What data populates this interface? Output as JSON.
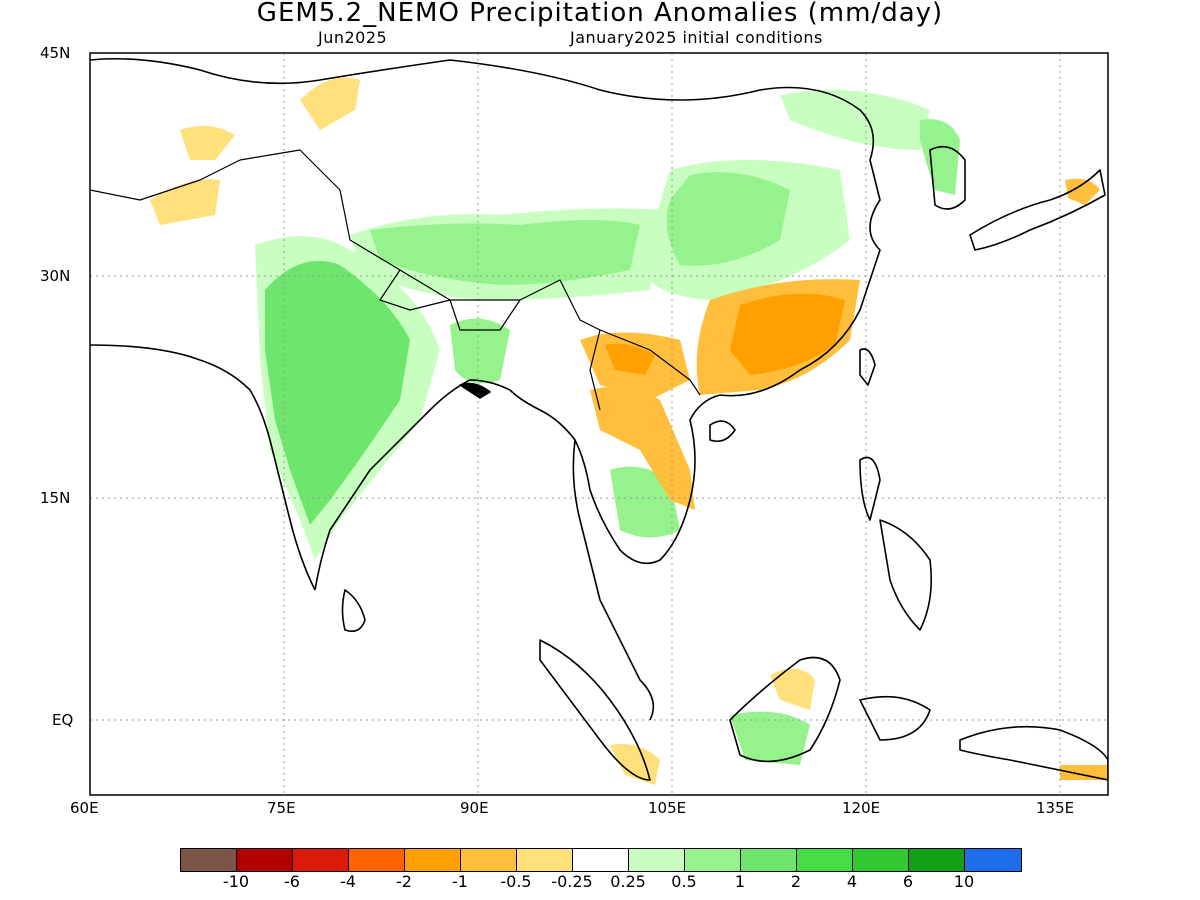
{
  "title": "GEM5.2_NEMO Precipitation Anomalies (mm/day)",
  "subtitle_left": "Jun2025",
  "subtitle_right": "January2025 initial conditions",
  "axes": {
    "x_ticks": [
      "60E",
      "75E",
      "90E",
      "105E",
      "120E",
      "135E"
    ],
    "y_ticks": [
      "45N",
      "30N",
      "15N",
      "EQ"
    ]
  },
  "legend": {
    "colors": [
      "#7a5548",
      "#b30000",
      "#dc1a0a",
      "#ff6400",
      "#ffa000",
      "#ffbe3c",
      "#ffe07a",
      "#ffffff",
      "#c8ffc0",
      "#96f28c",
      "#6ee66e",
      "#46dc46",
      "#32c832",
      "#14a014",
      "#1e6eeb"
    ],
    "labels": [
      "-10",
      "-6",
      "-4",
      "-2",
      "-1",
      "-0.5",
      "-0.25",
      "0.25",
      "0.5",
      "1",
      "2",
      "4",
      "6",
      "10"
    ]
  },
  "colors": {
    "anomaly_green": "#6ee66e",
    "anomaly_light_green": "#c8ffc0",
    "anomaly_orange": "#ffa000",
    "anomaly_yellow": "#ffe07a"
  }
}
